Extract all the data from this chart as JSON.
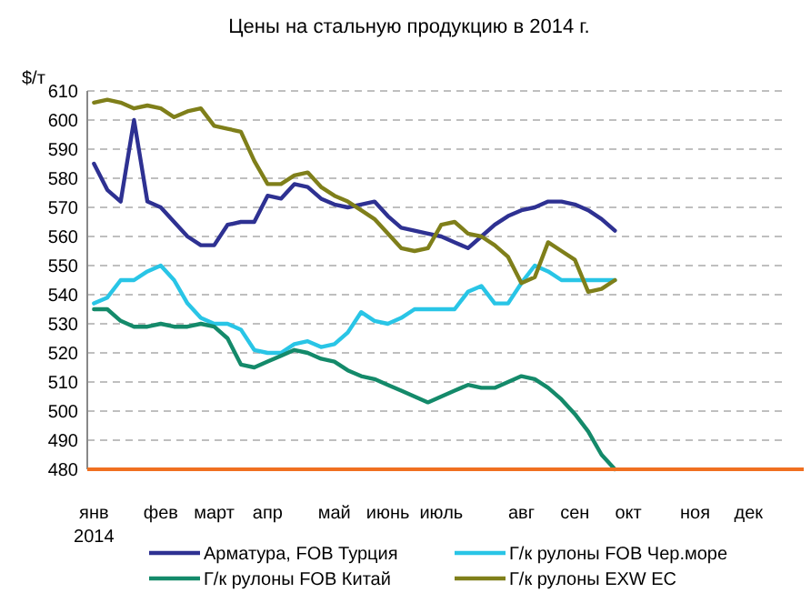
{
  "chart_data": {
    "type": "line",
    "title": "Цены на стальную продукцию в 2014 г.",
    "ylabel": "$/т",
    "categories": [
      "янв\n2014",
      null,
      null,
      null,
      null,
      "фев",
      null,
      null,
      null,
      "март",
      null,
      null,
      null,
      "апр",
      null,
      null,
      null,
      null,
      "май",
      null,
      null,
      null,
      "июнь",
      null,
      null,
      null,
      "июль",
      null,
      null,
      null,
      null,
      null,
      "авг",
      null,
      null,
      null,
      "сен",
      null,
      null,
      null,
      "окт",
      null,
      null,
      null,
      null,
      "ноя",
      null,
      null,
      null,
      "дек",
      null,
      null
    ],
    "ylim": [
      480,
      610
    ],
    "yticks": [
      480,
      490,
      500,
      510,
      520,
      530,
      540,
      550,
      560,
      570,
      580,
      590,
      600,
      610
    ],
    "grid": "y",
    "legend": "bottom",
    "marker": "none",
    "line_style": "solid",
    "series": [
      {
        "name": "Арматура, FOB Турция",
        "color": "#2e3192",
        "values": [
          585,
          576,
          572,
          600,
          572,
          570,
          565,
          560,
          557,
          557,
          564,
          565,
          565,
          574,
          573,
          578,
          577,
          573,
          571,
          570,
          571,
          572,
          567,
          563,
          562,
          561,
          560,
          558,
          556,
          560,
          564,
          567,
          569,
          570,
          572,
          572,
          571,
          569,
          566,
          562,
          null,
          null,
          null,
          null,
          null,
          null,
          null,
          null,
          null,
          null,
          null,
          null
        ]
      },
      {
        "name": "Г/к рулоны FOB Чер.море",
        "color": "#29c5e6",
        "values": [
          537,
          539,
          545,
          545,
          548,
          550,
          545,
          537,
          532,
          530,
          530,
          528,
          521,
          520,
          520,
          523,
          524,
          522,
          523,
          527,
          534,
          531,
          530,
          532,
          535,
          535,
          535,
          535,
          541,
          543,
          537,
          537,
          544,
          550,
          548,
          545,
          545,
          545,
          545,
          545,
          null,
          null,
          null,
          null,
          null,
          null,
          null,
          null,
          null,
          null,
          null,
          null
        ]
      },
      {
        "name": "Г/к рулоны FOB Китай",
        "color": "#148a6a",
        "values": [
          535,
          535,
          531,
          529,
          529,
          530,
          529,
          529,
          530,
          529,
          525,
          516,
          515,
          517,
          519,
          521,
          520,
          518,
          517,
          514,
          512,
          511,
          509,
          507,
          505,
          503,
          505,
          507,
          509,
          508,
          508,
          510,
          512,
          511,
          508,
          504,
          499,
          493,
          485,
          480,
          null,
          null,
          null,
          null,
          null,
          null,
          null,
          null,
          null,
          null,
          null,
          null
        ]
      },
      {
        "name": "Г/к рулоны EXW ЕС",
        "color": "#7f7f1a",
        "values": [
          606,
          607,
          606,
          604,
          605,
          604,
          601,
          603,
          604,
          598,
          597,
          596,
          586,
          578,
          578,
          581,
          582,
          577,
          574,
          572,
          569,
          566,
          561,
          556,
          555,
          556,
          564,
          565,
          561,
          560,
          557,
          553,
          544,
          546,
          558,
          555,
          552,
          541,
          542,
          545,
          null,
          null,
          null,
          null,
          null,
          null,
          null,
          null,
          null,
          null,
          null,
          null
        ]
      }
    ]
  }
}
